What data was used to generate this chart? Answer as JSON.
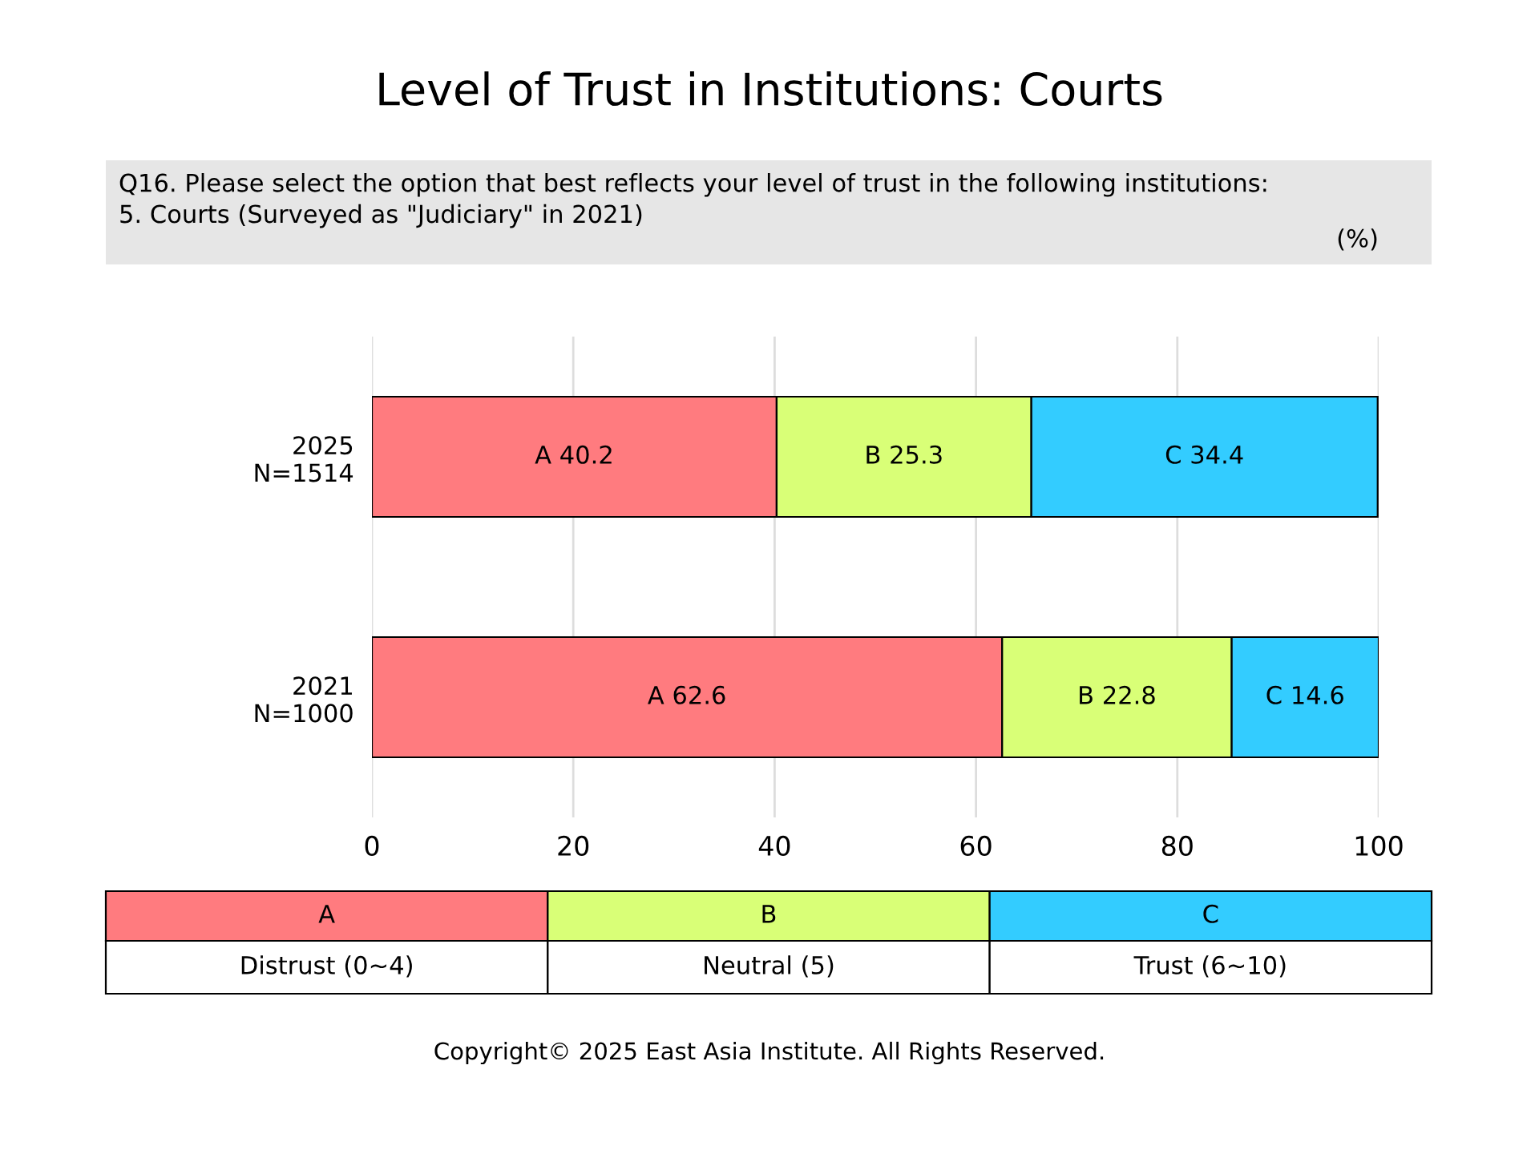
{
  "chart_data": {
    "type": "bar",
    "orientation": "horizontal",
    "stacked": true,
    "title": "Level of Trust in Institutions: Courts",
    "subtitle": "Q16. Please select the option that best reflects your level of trust in the following institutions:\n5. Courts (Surveyed as \"Judiciary\" in 2021)",
    "categories": [
      "2025\nN=1514",
      "2021\nN=1000"
    ],
    "series": [
      {
        "name": "A",
        "color": "#ff7b7f",
        "values": [
          40.2,
          62.6
        ],
        "value_labels": [
          "A 40.2",
          "A 62.6"
        ]
      },
      {
        "name": "B",
        "color": "#d9ff77",
        "values": [
          25.3,
          22.8
        ],
        "value_labels": [
          "B 25.3",
          "B 22.8"
        ]
      },
      {
        "name": "C",
        "color": "#33ccff",
        "values": [
          34.4,
          14.6
        ],
        "value_labels": [
          "C 34.4",
          "C 14.6"
        ]
      }
    ],
    "xlim": [
      0,
      100
    ],
    "xticks": [
      0,
      20,
      40,
      60,
      80,
      100
    ],
    "grid": "x",
    "legend": "bottom",
    "annotations": [
      "Distrust (0~4)",
      "Neutral (5)",
      "Trust (6~10)",
      "(%)",
      "Copyright© 2025 East Asia Institute. All Rights Reserved."
    ]
  }
}
